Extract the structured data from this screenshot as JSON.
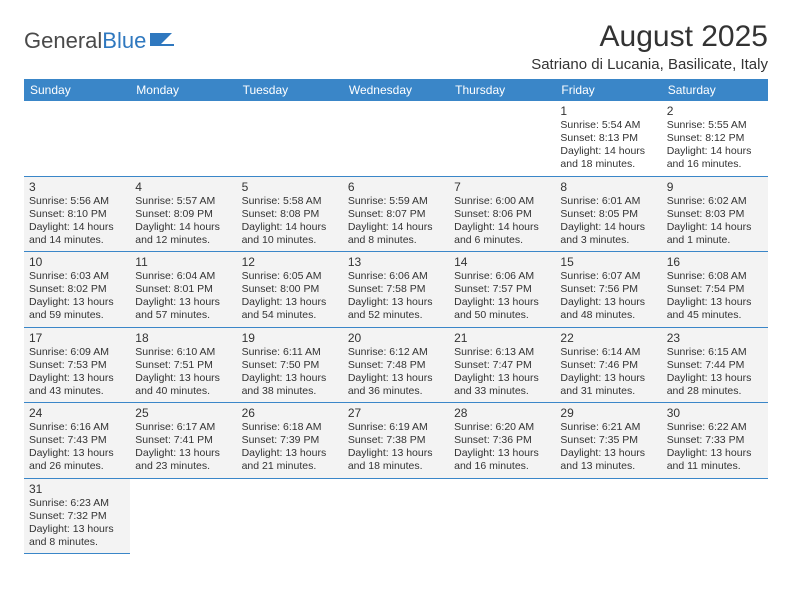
{
  "logo": {
    "text_general": "General",
    "text_blue": "Blue"
  },
  "title": "August 2025",
  "location": "Satriano di Lucania, Basilicate, Italy",
  "colors": {
    "header_bg": "#3a86c8",
    "header_text": "#ffffff",
    "border": "#3a86c8",
    "shade_bg": "#f3f3f3",
    "text": "#333333",
    "logo_blue": "#2f78bf"
  },
  "day_headers": [
    "Sunday",
    "Monday",
    "Tuesday",
    "Wednesday",
    "Thursday",
    "Friday",
    "Saturday"
  ],
  "weeks": [
    [
      null,
      null,
      null,
      null,
      null,
      {
        "n": "1",
        "sr": "5:54 AM",
        "ss": "8:13 PM",
        "dl": "14 hours and 18 minutes."
      },
      {
        "n": "2",
        "sr": "5:55 AM",
        "ss": "8:12 PM",
        "dl": "14 hours and 16 minutes."
      }
    ],
    [
      {
        "n": "3",
        "sr": "5:56 AM",
        "ss": "8:10 PM",
        "dl": "14 hours and 14 minutes."
      },
      {
        "n": "4",
        "sr": "5:57 AM",
        "ss": "8:09 PM",
        "dl": "14 hours and 12 minutes."
      },
      {
        "n": "5",
        "sr": "5:58 AM",
        "ss": "8:08 PM",
        "dl": "14 hours and 10 minutes."
      },
      {
        "n": "6",
        "sr": "5:59 AM",
        "ss": "8:07 PM",
        "dl": "14 hours and 8 minutes."
      },
      {
        "n": "7",
        "sr": "6:00 AM",
        "ss": "8:06 PM",
        "dl": "14 hours and 6 minutes."
      },
      {
        "n": "8",
        "sr": "6:01 AM",
        "ss": "8:05 PM",
        "dl": "14 hours and 3 minutes."
      },
      {
        "n": "9",
        "sr": "6:02 AM",
        "ss": "8:03 PM",
        "dl": "14 hours and 1 minute."
      }
    ],
    [
      {
        "n": "10",
        "sr": "6:03 AM",
        "ss": "8:02 PM",
        "dl": "13 hours and 59 minutes."
      },
      {
        "n": "11",
        "sr": "6:04 AM",
        "ss": "8:01 PM",
        "dl": "13 hours and 57 minutes."
      },
      {
        "n": "12",
        "sr": "6:05 AM",
        "ss": "8:00 PM",
        "dl": "13 hours and 54 minutes."
      },
      {
        "n": "13",
        "sr": "6:06 AM",
        "ss": "7:58 PM",
        "dl": "13 hours and 52 minutes."
      },
      {
        "n": "14",
        "sr": "6:06 AM",
        "ss": "7:57 PM",
        "dl": "13 hours and 50 minutes."
      },
      {
        "n": "15",
        "sr": "6:07 AM",
        "ss": "7:56 PM",
        "dl": "13 hours and 48 minutes."
      },
      {
        "n": "16",
        "sr": "6:08 AM",
        "ss": "7:54 PM",
        "dl": "13 hours and 45 minutes."
      }
    ],
    [
      {
        "n": "17",
        "sr": "6:09 AM",
        "ss": "7:53 PM",
        "dl": "13 hours and 43 minutes."
      },
      {
        "n": "18",
        "sr": "6:10 AM",
        "ss": "7:51 PM",
        "dl": "13 hours and 40 minutes."
      },
      {
        "n": "19",
        "sr": "6:11 AM",
        "ss": "7:50 PM",
        "dl": "13 hours and 38 minutes."
      },
      {
        "n": "20",
        "sr": "6:12 AM",
        "ss": "7:48 PM",
        "dl": "13 hours and 36 minutes."
      },
      {
        "n": "21",
        "sr": "6:13 AM",
        "ss": "7:47 PM",
        "dl": "13 hours and 33 minutes."
      },
      {
        "n": "22",
        "sr": "6:14 AM",
        "ss": "7:46 PM",
        "dl": "13 hours and 31 minutes."
      },
      {
        "n": "23",
        "sr": "6:15 AM",
        "ss": "7:44 PM",
        "dl": "13 hours and 28 minutes."
      }
    ],
    [
      {
        "n": "24",
        "sr": "6:16 AM",
        "ss": "7:43 PM",
        "dl": "13 hours and 26 minutes."
      },
      {
        "n": "25",
        "sr": "6:17 AM",
        "ss": "7:41 PM",
        "dl": "13 hours and 23 minutes."
      },
      {
        "n": "26",
        "sr": "6:18 AM",
        "ss": "7:39 PM",
        "dl": "13 hours and 21 minutes."
      },
      {
        "n": "27",
        "sr": "6:19 AM",
        "ss": "7:38 PM",
        "dl": "13 hours and 18 minutes."
      },
      {
        "n": "28",
        "sr": "6:20 AM",
        "ss": "7:36 PM",
        "dl": "13 hours and 16 minutes."
      },
      {
        "n": "29",
        "sr": "6:21 AM",
        "ss": "7:35 PM",
        "dl": "13 hours and 13 minutes."
      },
      {
        "n": "30",
        "sr": "6:22 AM",
        "ss": "7:33 PM",
        "dl": "13 hours and 11 minutes."
      }
    ],
    [
      {
        "n": "31",
        "sr": "6:23 AM",
        "ss": "7:32 PM",
        "dl": "13 hours and 8 minutes."
      },
      null,
      null,
      null,
      null,
      null,
      null
    ]
  ],
  "labels": {
    "sunrise": "Sunrise:",
    "sunset": "Sunset:",
    "daylight": "Daylight:"
  }
}
